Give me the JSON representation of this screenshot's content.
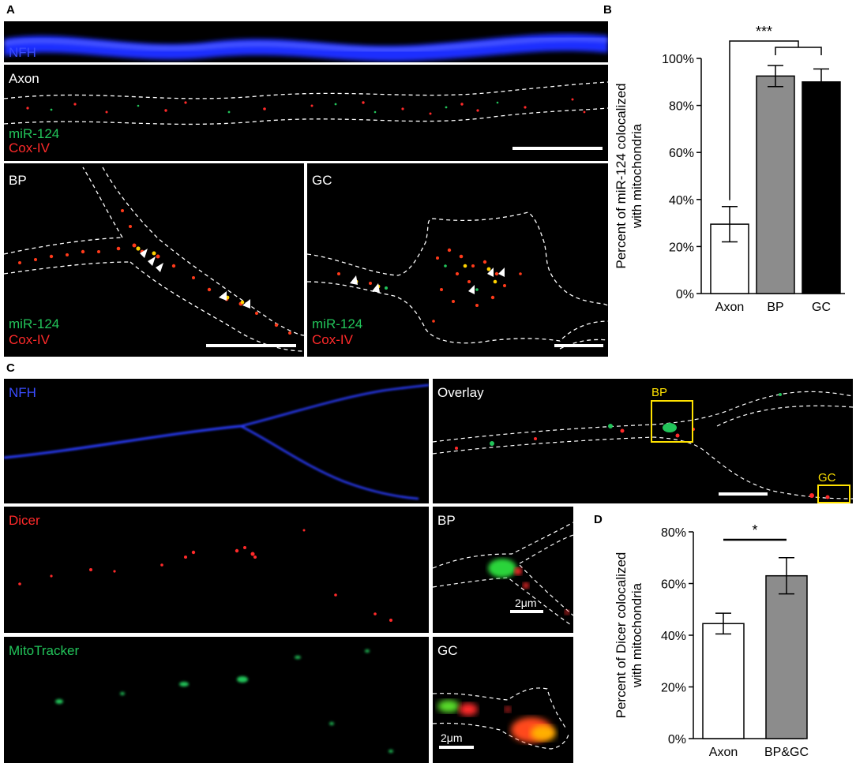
{
  "panel_letters": {
    "a": "A",
    "b": "B",
    "c": "C",
    "d": "D"
  },
  "panel_a": {
    "nfh": "NFH",
    "axon": "Axon",
    "bp": "BP",
    "gc": "GC",
    "mir124": "miR-124",
    "cox4": "Cox-IV"
  },
  "panel_c": {
    "nfh": "NFH",
    "overlay": "Overlay",
    "dicer": "Dicer",
    "mitotracker": "MitoTracker",
    "bp": "BP",
    "gc": "GC",
    "scale_2um": "2μm"
  },
  "colors": {
    "nfh": "#2233ff",
    "green": "#22c45a",
    "red": "#ff2a2a",
    "yellow": "#ffe200",
    "gray": "#8c8c8c"
  },
  "chart_data": [
    {
      "id": "B",
      "type": "bar",
      "ylabel": "Percent of miR-124 colocalized with mitochondria",
      "ylabel_lines": [
        "Percent of miR-124 colocalized",
        "with mitochondria"
      ],
      "categories": [
        "Axon",
        "BP",
        "GC"
      ],
      "values": [
        29.5,
        92.5,
        90
      ],
      "errors": [
        7.5,
        4.5,
        5.5
      ],
      "bar_colors": [
        "#ffffff",
        "#8c8c8c",
        "#000000"
      ],
      "ylim": [
        0,
        100
      ],
      "yticks": [
        "0%",
        "20%",
        "40%",
        "60%",
        "80%",
        "100%"
      ],
      "significance": "***"
    },
    {
      "id": "D",
      "type": "bar",
      "ylabel": "Percent of Dicer colocalized with mitochondria",
      "ylabel_lines": [
        "Percent of Dicer colocalized",
        "with mitochondria"
      ],
      "categories": [
        "Axon",
        "BP&GC"
      ],
      "values": [
        44.5,
        63
      ],
      "errors": [
        4,
        7
      ],
      "bar_colors": [
        "#ffffff",
        "#8c8c8c"
      ],
      "ylim": [
        0,
        80
      ],
      "yticks": [
        "0%",
        "20%",
        "40%",
        "60%",
        "80%"
      ],
      "significance": "*"
    }
  ]
}
